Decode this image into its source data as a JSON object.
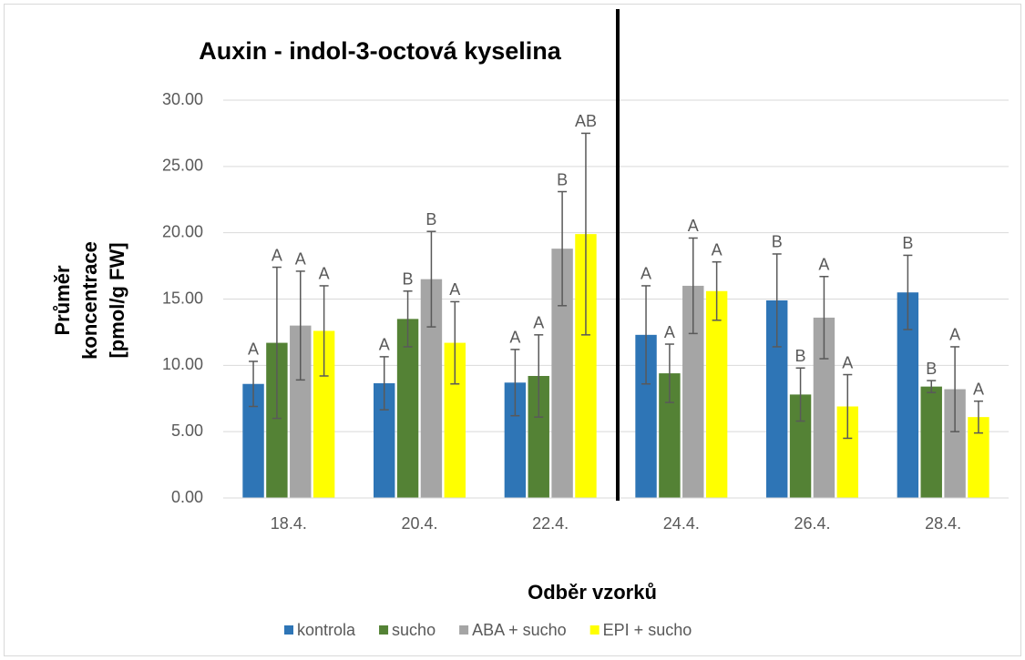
{
  "chart_data": {
    "type": "bar",
    "title": "Auxin - indol-3-octová kyselina",
    "ylabel": [
      "Průměr",
      "koncentrace",
      "[pmol/g FW]"
    ],
    "xlabel": "Odběr vzorků",
    "categories": [
      "18.4.",
      "20.4.",
      "22.4.",
      "24.4.",
      "26.4.",
      "28.4."
    ],
    "series": [
      {
        "name": "kontrola",
        "color": "#2e75b6",
        "values": [
          8.6,
          8.65,
          8.7,
          12.3,
          14.9,
          15.5
        ],
        "errors": [
          1.7,
          2.0,
          2.5,
          3.7,
          3.5,
          2.8
        ],
        "letters": [
          "A",
          "A",
          "A",
          "A",
          "B",
          "B"
        ]
      },
      {
        "name": "sucho",
        "color": "#548235",
        "values": [
          11.7,
          13.5,
          9.2,
          9.4,
          7.8,
          8.4
        ],
        "errors": [
          5.7,
          2.1,
          3.1,
          2.2,
          2.0,
          0.45
        ],
        "letters": [
          "A",
          "B",
          "A",
          "A",
          "B",
          "B"
        ]
      },
      {
        "name": "ABA + sucho",
        "color": "#a5a5a5",
        "values": [
          13.0,
          16.5,
          18.8,
          16.0,
          13.6,
          8.2
        ],
        "errors": [
          4.1,
          3.6,
          4.3,
          3.6,
          3.1,
          3.2
        ],
        "letters": [
          "A",
          "B",
          "B",
          "A",
          "A",
          "A"
        ]
      },
      {
        "name": "EPI + sucho",
        "color": "#ffff00",
        "values": [
          12.6,
          11.7,
          19.9,
          15.6,
          6.9,
          6.1
        ],
        "errors": [
          3.4,
          3.1,
          7.6,
          2.2,
          2.4,
          1.2
        ],
        "letters": [
          "A",
          "A",
          "AB",
          "A",
          "A",
          "A"
        ]
      }
    ],
    "ylim": [
      0,
      30
    ],
    "yticks": [
      {
        "value": 0,
        "label": "0.00"
      },
      {
        "value": 5,
        "label": "5.00"
      },
      {
        "value": 10,
        "label": "10.00"
      },
      {
        "value": 15,
        "label": "15.00"
      },
      {
        "value": 20,
        "label": "20.00"
      },
      {
        "value": 25,
        "label": "25.00"
      },
      {
        "value": 30,
        "label": "30.00"
      }
    ],
    "grid": true
  }
}
